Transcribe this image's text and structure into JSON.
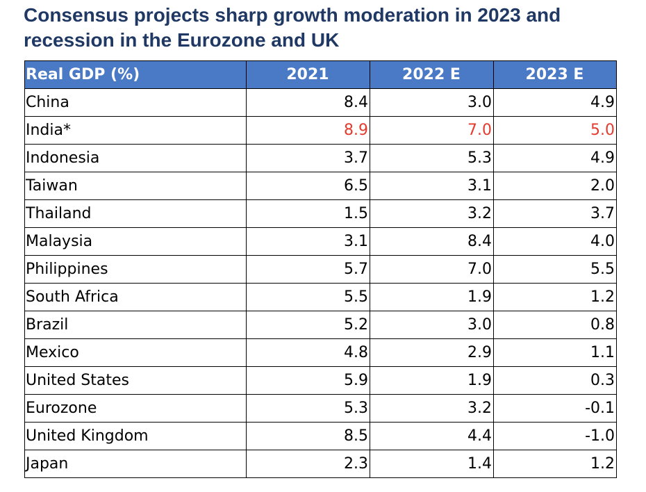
{
  "title": "Consensus projects sharp growth moderation in 2023 and recession in the Eurozone and UK",
  "colors": {
    "title": "#1f3864",
    "header_bg": "#4a7ac6",
    "header_text": "#ffffff",
    "highlight": "#e33b2e"
  },
  "chart_data": {
    "type": "table",
    "title": "Consensus projects sharp growth moderation in 2023 and recession in the Eurozone and UK",
    "columns": [
      "Real GDP (%)",
      "2021",
      "2022 E",
      "2023 E"
    ],
    "rows": [
      {
        "country": "China",
        "values": [
          "8.4",
          "3.0",
          "4.9"
        ],
        "highlight": false
      },
      {
        "country": "India*",
        "values": [
          "8.9",
          "7.0",
          "5.0"
        ],
        "highlight": true
      },
      {
        "country": "Indonesia",
        "values": [
          "3.7",
          "5.3",
          "4.9"
        ],
        "highlight": false
      },
      {
        "country": "Taiwan",
        "values": [
          "6.5",
          "3.1",
          "2.0"
        ],
        "highlight": false
      },
      {
        "country": "Thailand",
        "values": [
          "1.5",
          "3.2",
          "3.7"
        ],
        "highlight": false
      },
      {
        "country": "Malaysia",
        "values": [
          "3.1",
          "8.4",
          "4.0"
        ],
        "highlight": false
      },
      {
        "country": "Philippines",
        "values": [
          "5.7",
          "7.0",
          "5.5"
        ],
        "highlight": false
      },
      {
        "country": "South Africa",
        "values": [
          "5.5",
          "1.9",
          "1.2"
        ],
        "highlight": false
      },
      {
        "country": "Brazil",
        "values": [
          "5.2",
          "3.0",
          "0.8"
        ],
        "highlight": false
      },
      {
        "country": "Mexico",
        "values": [
          "4.8",
          "2.9",
          "1.1"
        ],
        "highlight": false
      },
      {
        "country": "United States",
        "values": [
          "5.9",
          "1.9",
          "0.3"
        ],
        "highlight": false
      },
      {
        "country": "Eurozone",
        "values": [
          "5.3",
          "3.2",
          "-0.1"
        ],
        "highlight": false
      },
      {
        "country": "United Kingdom",
        "values": [
          "8.5",
          "4.4",
          "-1.0"
        ],
        "highlight": false
      },
      {
        "country": "Japan",
        "values": [
          "2.3",
          "1.4",
          "1.2"
        ],
        "highlight": false
      }
    ]
  }
}
